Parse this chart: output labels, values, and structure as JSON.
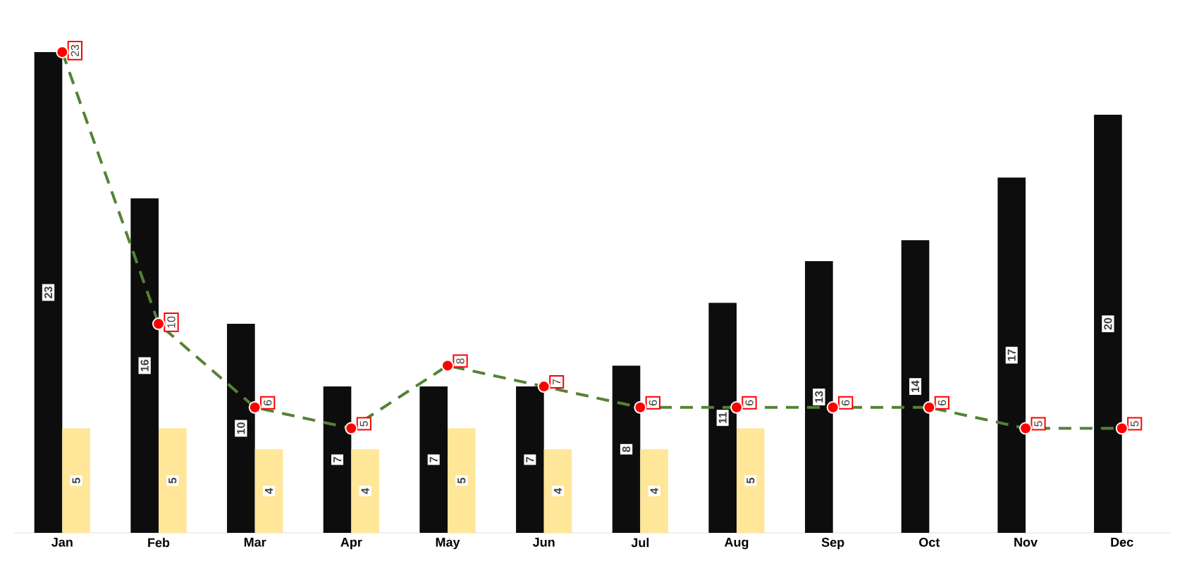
{
  "chart_data": {
    "type": "bar",
    "categories": [
      "Jan",
      "Feb",
      "Mar",
      "Apr",
      "May",
      "Jun",
      "Jul",
      "Aug",
      "Sep",
      "Oct",
      "Nov",
      "Dec"
    ],
    "series": [
      {
        "color": "#0d0d0d",
        "values": [
          23,
          16,
          10,
          7,
          7,
          7,
          8,
          11,
          13,
          14,
          17,
          20
        ]
      },
      {
        "color": "#ffe699",
        "values": [
          5,
          5,
          4,
          4,
          5,
          4,
          4,
          5,
          null,
          null,
          null,
          null
        ]
      },
      {
        "type": "line",
        "color": "#548235",
        "colors": [
          "#ff0000",
          "#ff0000",
          "#ff0000",
          "#ff0000",
          "#ff0000",
          "#ff0000",
          "#ff0000",
          "#ff0000",
          "#ff0000",
          "#ff0000",
          "#ff0000",
          "#ff0000"
        ],
        "marker": "circle",
        "line_style": "dashed",
        "values": [
          23,
          10,
          6,
          5,
          8,
          7,
          6,
          6,
          6,
          6,
          5,
          5
        ]
      }
    ],
    "data_labels": true
  }
}
